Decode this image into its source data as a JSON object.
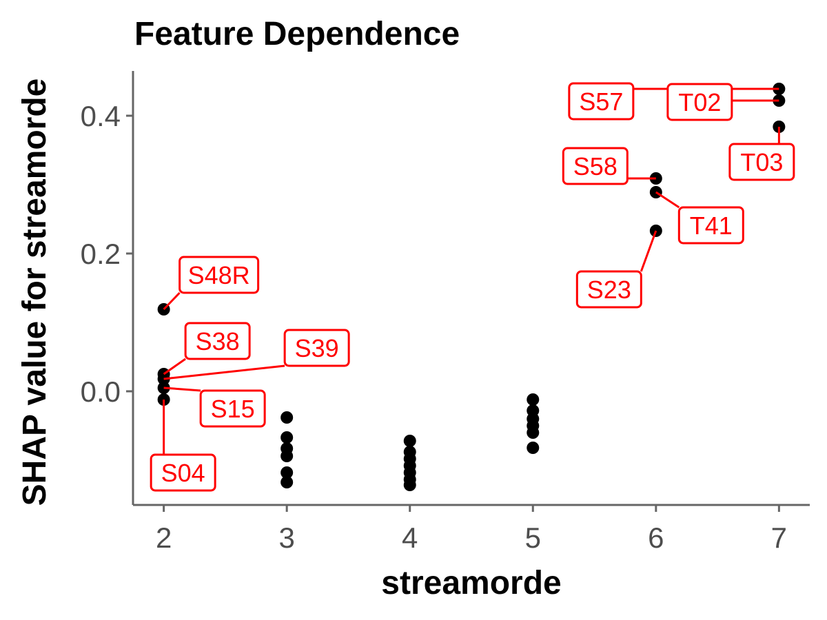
{
  "chart_data": {
    "type": "scatter",
    "title": "Feature Dependence",
    "xlabel": "streamorde",
    "ylabel": "SHAP value for streamorde",
    "xlim": [
      1.75,
      7.25
    ],
    "ylim": [
      -0.165,
      0.465
    ],
    "xticks": [
      2,
      3,
      4,
      5,
      6,
      7
    ],
    "yticks": [
      0.0,
      0.2,
      0.4
    ],
    "ytick_labels": [
      "0.0",
      "0.2",
      "0.4"
    ],
    "grid": false,
    "point_color": "#000000",
    "label_color": "#ff0000",
    "points": [
      {
        "x": 2,
        "y": 0.119,
        "label": "S48R"
      },
      {
        "x": 2,
        "y": 0.025,
        "label": "S38"
      },
      {
        "x": 2,
        "y": 0.018,
        "label": "S39"
      },
      {
        "x": 2,
        "y": 0.005,
        "label": "S15"
      },
      {
        "x": 2,
        "y": -0.012,
        "label": "S04"
      },
      {
        "x": 3,
        "y": -0.038,
        "label": ""
      },
      {
        "x": 3,
        "y": -0.067,
        "label": ""
      },
      {
        "x": 3,
        "y": -0.083,
        "label": ""
      },
      {
        "x": 3,
        "y": -0.094,
        "label": ""
      },
      {
        "x": 3,
        "y": -0.118,
        "label": ""
      },
      {
        "x": 3,
        "y": -0.132,
        "label": ""
      },
      {
        "x": 4,
        "y": -0.072,
        "label": ""
      },
      {
        "x": 4,
        "y": -0.088,
        "label": ""
      },
      {
        "x": 4,
        "y": -0.098,
        "label": ""
      },
      {
        "x": 4,
        "y": -0.108,
        "label": ""
      },
      {
        "x": 4,
        "y": -0.118,
        "label": ""
      },
      {
        "x": 4,
        "y": -0.128,
        "label": ""
      },
      {
        "x": 4,
        "y": -0.136,
        "label": ""
      },
      {
        "x": 5,
        "y": -0.012,
        "label": ""
      },
      {
        "x": 5,
        "y": -0.028,
        "label": ""
      },
      {
        "x": 5,
        "y": -0.04,
        "label": ""
      },
      {
        "x": 5,
        "y": -0.05,
        "label": ""
      },
      {
        "x": 5,
        "y": -0.06,
        "label": ""
      },
      {
        "x": 5,
        "y": -0.082,
        "label": ""
      },
      {
        "x": 6,
        "y": 0.309,
        "label": "S58"
      },
      {
        "x": 6,
        "y": 0.289,
        "label": "T41"
      },
      {
        "x": 6,
        "y": 0.233,
        "label": "S23"
      },
      {
        "x": 7,
        "y": 0.439,
        "label": "S57"
      },
      {
        "x": 7,
        "y": 0.422,
        "label": "T02"
      },
      {
        "x": 7,
        "y": 0.384,
        "label": "T03"
      }
    ]
  }
}
